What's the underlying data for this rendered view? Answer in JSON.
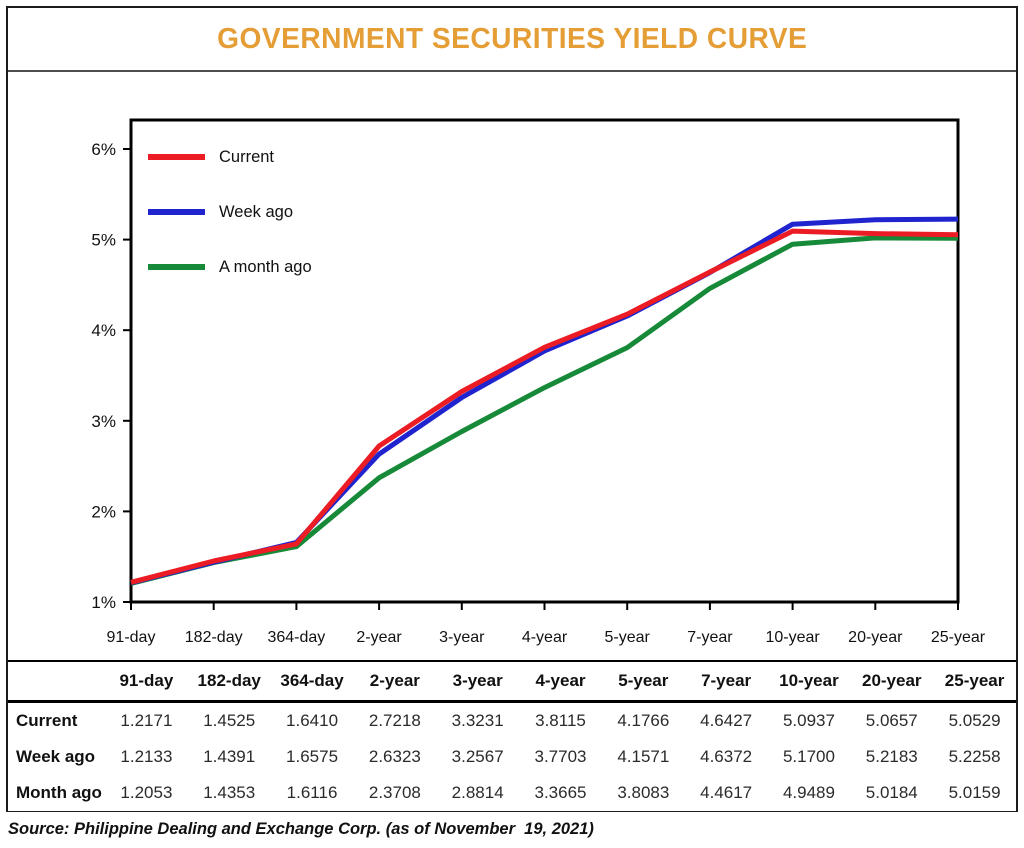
{
  "title": "GOVERNMENT SECURITIES YIELD CURVE",
  "source": "Source: Philippine Dealing and Exchange Corp. (as of November  19, 2021)",
  "colors": {
    "title": "#e59d35",
    "current": "#eb1c24",
    "week_ago": "#2024ce",
    "month_ago": "#168a38",
    "axis": "#000000"
  },
  "chart_data": {
    "type": "line",
    "title": "GOVERNMENT SECURITIES YIELD CURVE",
    "categories": [
      "91-day",
      "182-day",
      "364-day",
      "2-year",
      "3-year",
      "4-year",
      "5-year",
      "7-year",
      "10-year",
      "20-year",
      "25-year"
    ],
    "series": [
      {
        "name": "Current",
        "color_key": "current",
        "values": [
          1.2171,
          1.4525,
          1.641,
          2.7218,
          3.3231,
          3.8115,
          4.1766,
          4.6427,
          5.0937,
          5.0657,
          5.0529
        ]
      },
      {
        "name": "Week ago",
        "color_key": "week_ago",
        "values": [
          1.2133,
          1.4391,
          1.6575,
          2.6323,
          3.2567,
          3.7703,
          4.1571,
          4.6372,
          5.17,
          5.2183,
          5.2258
        ]
      },
      {
        "name": "A month ago",
        "color_key": "month_ago",
        "values": [
          1.2053,
          1.4353,
          1.6116,
          2.3708,
          2.8814,
          3.3665,
          3.8083,
          4.4617,
          4.9489,
          5.0184,
          5.0159
        ]
      }
    ],
    "ylabel_ticks": [
      "1%",
      "2%",
      "3%",
      "4%",
      "5%",
      "6%"
    ],
    "ylim": [
      1,
      6.32
    ],
    "xlabel": "",
    "ylabel": "",
    "grid": false,
    "legend_position": "top-left-inside"
  },
  "table": {
    "headers": [
      "91-day",
      "182-day",
      "364-day",
      "2-year",
      "3-year",
      "4-year",
      "5-year",
      "7-year",
      "10-year",
      "20-year",
      "25-year"
    ],
    "rows": [
      {
        "label": "Current",
        "values": [
          "1.2171",
          "1.4525",
          "1.6410",
          "2.7218",
          "3.3231",
          "3.8115",
          "4.1766",
          "4.6427",
          "5.0937",
          "5.0657",
          "5.0529"
        ]
      },
      {
        "label": "Week ago",
        "values": [
          "1.2133",
          "1.4391",
          "1.6575",
          "2.6323",
          "3.2567",
          "3.7703",
          "4.1571",
          "4.6372",
          "5.1700",
          "5.2183",
          "5.2258"
        ]
      },
      {
        "label": "Month ago",
        "values": [
          "1.2053",
          "1.4353",
          "1.6116",
          "2.3708",
          "2.8814",
          "3.3665",
          "3.8083",
          "4.4617",
          "4.9489",
          "5.0184",
          "5.0159"
        ]
      }
    ]
  }
}
